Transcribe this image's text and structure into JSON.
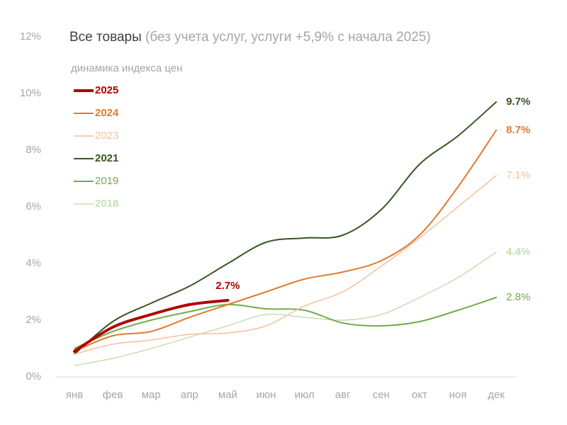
{
  "chart_data": {
    "type": "line",
    "title": "Все товары",
    "title_note": "(без учета услуг, услуги +5,9% с начала 2025)",
    "subtitle": "динамика индекса цен",
    "categories": [
      "янв",
      "фев",
      "мар",
      "апр",
      "май",
      "июн",
      "июл",
      "авг",
      "сен",
      "окт",
      "ноя",
      "дек"
    ],
    "ylim": [
      0,
      12
    ],
    "yticks": [
      {
        "value": 0,
        "label": "0%"
      },
      {
        "value": 2,
        "label": "2%"
      },
      {
        "value": 4,
        "label": "4%"
      },
      {
        "value": 6,
        "label": "6%"
      },
      {
        "value": 8,
        "label": "8%"
      },
      {
        "value": 10,
        "label": "10%"
      },
      {
        "value": 12,
        "label": "12%"
      }
    ],
    "series": [
      {
        "name": "2025",
        "color": "#b00000",
        "width": 4,
        "bold": true,
        "values": [
          0.9,
          1.75,
          2.2,
          2.55,
          2.7,
          null,
          null,
          null,
          null,
          null,
          null,
          null
        ],
        "value_labels": [
          null,
          null,
          null,
          null,
          "2.7%",
          null,
          null,
          null,
          null,
          null,
          null,
          null
        ]
      },
      {
        "name": "2024",
        "color": "#e07b30",
        "width": 2,
        "bold": true,
        "values": [
          0.9,
          1.45,
          1.6,
          2.1,
          2.55,
          3.0,
          3.45,
          3.7,
          4.1,
          5.0,
          6.7,
          8.7
        ],
        "value_labels": [
          null,
          null,
          null,
          null,
          null,
          null,
          null,
          null,
          null,
          null,
          null,
          "8.7%"
        ]
      },
      {
        "name": "2023",
        "color": "#f5c09a",
        "width": 1.5,
        "bold": false,
        "values": [
          0.8,
          1.15,
          1.3,
          1.5,
          1.55,
          1.8,
          2.5,
          3.0,
          3.9,
          4.9,
          6.0,
          7.1
        ],
        "value_labels": [
          null,
          null,
          null,
          null,
          null,
          null,
          null,
          null,
          null,
          null,
          null,
          "7.1%"
        ]
      },
      {
        "name": "2021",
        "color": "#375623",
        "width": 2,
        "bold": true,
        "values": [
          0.8,
          1.95,
          2.6,
          3.2,
          4.0,
          4.75,
          4.9,
          5.0,
          5.9,
          7.5,
          8.5,
          9.7
        ],
        "value_labels": [
          null,
          null,
          null,
          null,
          null,
          null,
          null,
          null,
          null,
          null,
          null,
          "9.7%"
        ]
      },
      {
        "name": "2019",
        "color": "#70ad47",
        "width": 2,
        "bold": false,
        "values": [
          1.0,
          1.6,
          2.0,
          2.3,
          2.55,
          2.4,
          2.35,
          1.9,
          1.8,
          1.95,
          2.35,
          2.8
        ],
        "value_labels": [
          null,
          null,
          null,
          null,
          null,
          null,
          null,
          null,
          null,
          null,
          null,
          "2.8%"
        ]
      },
      {
        "name": "2018",
        "color": "#c5e0b4",
        "width": 1.5,
        "bold": true,
        "values": [
          0.4,
          0.65,
          1.0,
          1.4,
          1.8,
          2.2,
          2.1,
          2.0,
          2.2,
          2.8,
          3.5,
          4.4
        ],
        "value_labels": [
          null,
          null,
          null,
          null,
          null,
          null,
          null,
          null,
          null,
          null,
          null,
          "4.4%"
        ]
      }
    ]
  }
}
